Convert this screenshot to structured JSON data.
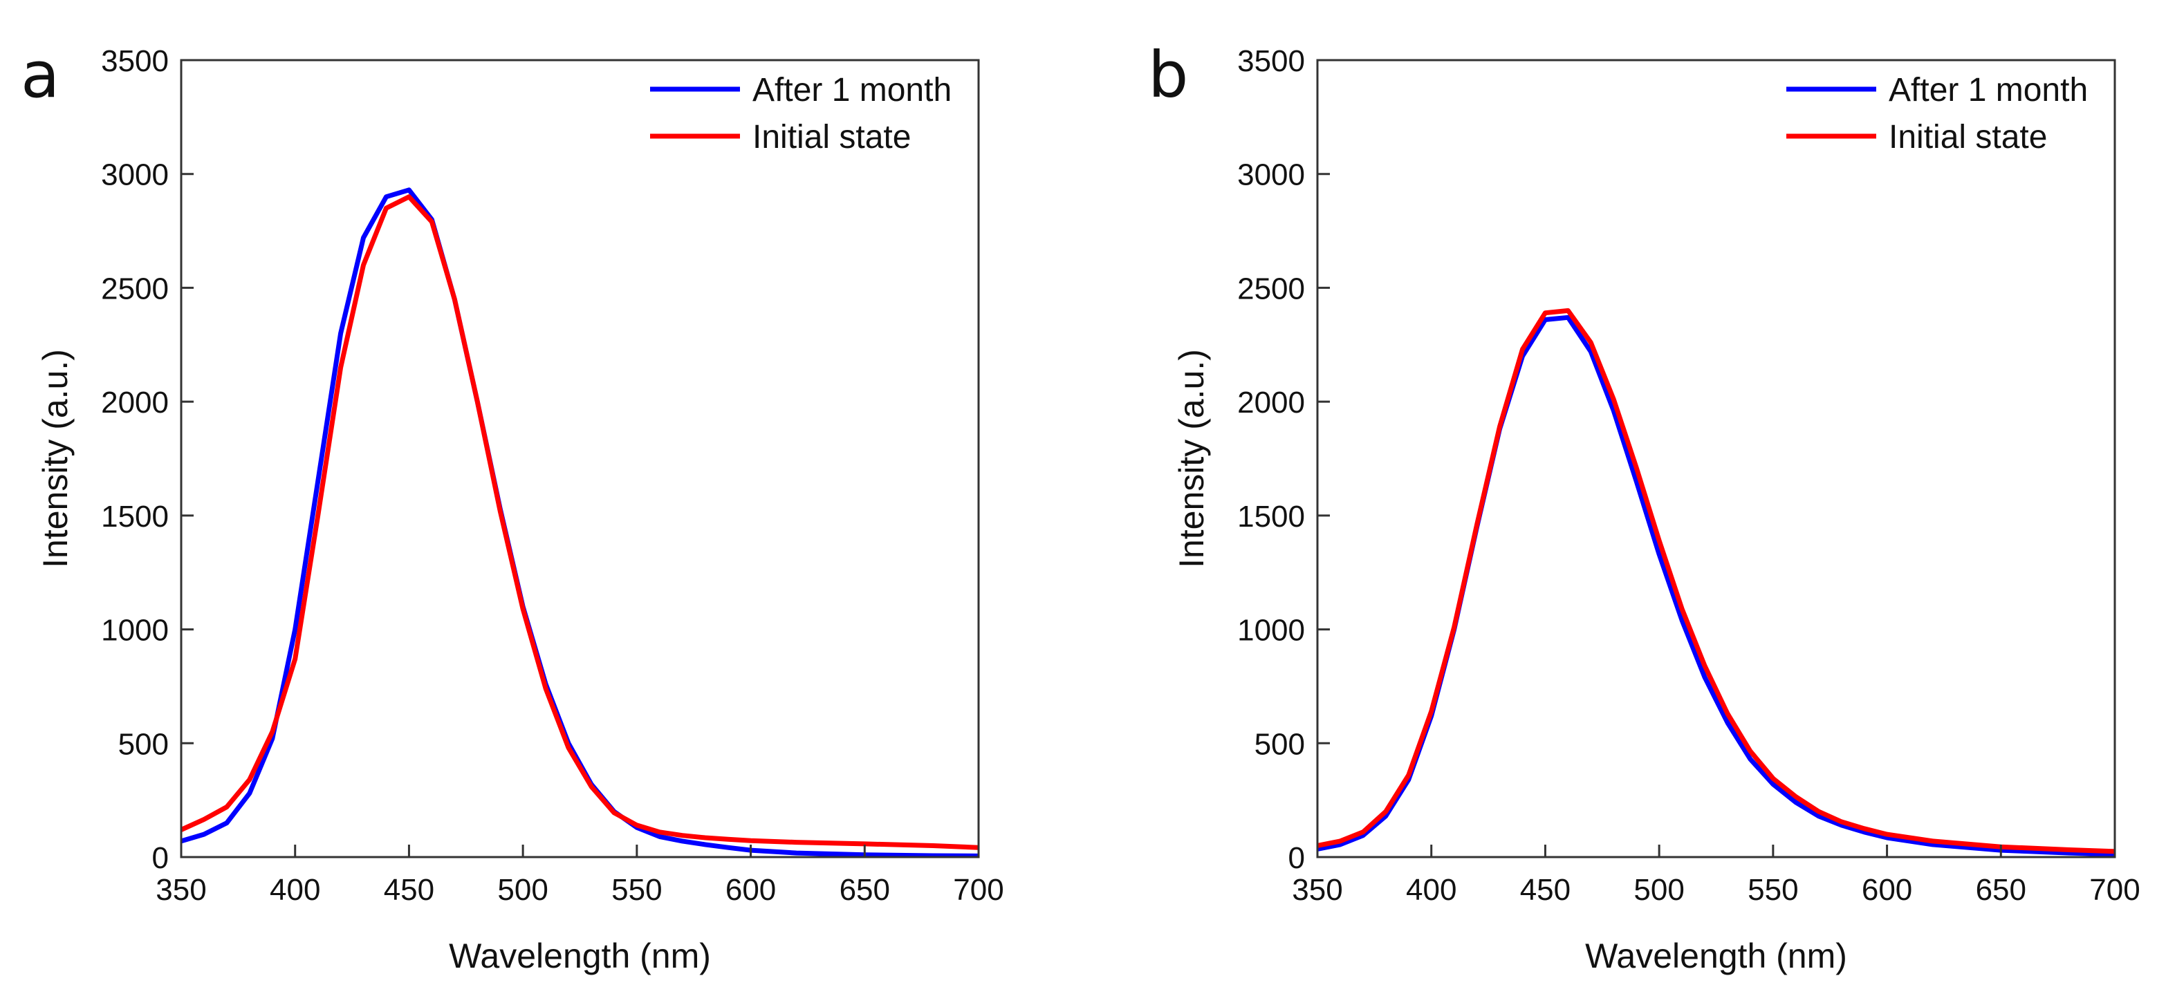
{
  "figure": {
    "panels": [
      "a",
      "b"
    ]
  },
  "chart_data": [
    {
      "panel": "a",
      "type": "line",
      "title": "",
      "xlabel": "Wavelength (nm)",
      "ylabel": "Intensity (a.u.)",
      "xlim": [
        350,
        700
      ],
      "ylim": [
        0,
        3500
      ],
      "xticks": [
        350,
        400,
        450,
        500,
        550,
        600,
        650,
        700
      ],
      "yticks": [
        0,
        500,
        1000,
        1500,
        2000,
        2500,
        3000,
        3500
      ],
      "grid": false,
      "legend": "top-right",
      "series": [
        {
          "name": "After 1 month",
          "color": "#0000ff",
          "x": [
            350,
            360,
            370,
            380,
            390,
            400,
            410,
            420,
            430,
            440,
            450,
            460,
            470,
            480,
            490,
            500,
            510,
            520,
            530,
            540,
            550,
            560,
            570,
            580,
            590,
            600,
            620,
            650,
            680,
            700
          ],
          "y": [
            70,
            100,
            150,
            280,
            520,
            1000,
            1650,
            2300,
            2720,
            2900,
            2930,
            2800,
            2450,
            2000,
            1530,
            1100,
            760,
            500,
            320,
            200,
            130,
            90,
            70,
            55,
            42,
            30,
            18,
            10,
            6,
            5
          ]
        },
        {
          "name": "Initial state",
          "color": "#ff0000",
          "x": [
            350,
            360,
            370,
            380,
            390,
            400,
            410,
            420,
            430,
            440,
            450,
            460,
            470,
            480,
            490,
            500,
            510,
            520,
            530,
            540,
            550,
            560,
            570,
            580,
            590,
            600,
            620,
            650,
            680,
            700
          ],
          "y": [
            120,
            165,
            220,
            340,
            550,
            870,
            1500,
            2150,
            2600,
            2850,
            2900,
            2790,
            2450,
            2000,
            1520,
            1090,
            740,
            480,
            310,
            195,
            140,
            110,
            95,
            85,
            78,
            72,
            65,
            58,
            50,
            42
          ]
        }
      ]
    },
    {
      "panel": "b",
      "type": "line",
      "title": "",
      "xlabel": "Wavelength (nm)",
      "ylabel": "Intensity (a.u.)",
      "xlim": [
        350,
        700
      ],
      "ylim": [
        0,
        3500
      ],
      "xticks": [
        350,
        400,
        450,
        500,
        550,
        600,
        650,
        700
      ],
      "yticks": [
        0,
        500,
        1000,
        1500,
        2000,
        2500,
        3000,
        3500
      ],
      "grid": false,
      "legend": "top-right",
      "series": [
        {
          "name": "After 1 month",
          "color": "#0000ff",
          "x": [
            350,
            360,
            370,
            380,
            390,
            400,
            410,
            420,
            430,
            440,
            450,
            460,
            470,
            480,
            490,
            500,
            510,
            520,
            530,
            540,
            550,
            560,
            570,
            580,
            590,
            600,
            620,
            650,
            680,
            700
          ],
          "y": [
            35,
            55,
            95,
            180,
            340,
            620,
            1000,
            1450,
            1880,
            2200,
            2360,
            2370,
            2220,
            1960,
            1650,
            1330,
            1040,
            790,
            590,
            430,
            320,
            240,
            180,
            140,
            110,
            85,
            55,
            30,
            18,
            12
          ]
        },
        {
          "name": "Initial state",
          "color": "#ff0000",
          "x": [
            350,
            360,
            370,
            380,
            390,
            400,
            410,
            420,
            430,
            440,
            450,
            460,
            470,
            480,
            490,
            500,
            510,
            520,
            530,
            540,
            550,
            560,
            570,
            580,
            590,
            600,
            620,
            650,
            680,
            700
          ],
          "y": [
            50,
            70,
            110,
            200,
            360,
            640,
            1010,
            1460,
            1890,
            2230,
            2390,
            2400,
            2260,
            2010,
            1710,
            1390,
            1090,
            840,
            630,
            465,
            345,
            265,
            200,
            155,
            125,
            100,
            70,
            45,
            32,
            25
          ]
        }
      ]
    }
  ]
}
